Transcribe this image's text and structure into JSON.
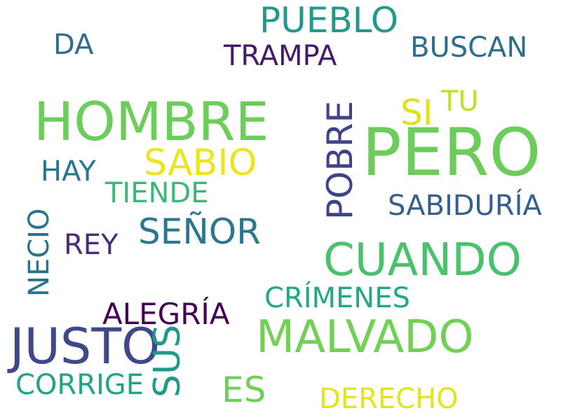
{
  "words": [
    {
      "text": "PUEBLO",
      "color": "#23998b"
    },
    {
      "text": "DA",
      "color": "#2f6c8e"
    },
    {
      "text": "TRAMPA",
      "color": "#43196a"
    },
    {
      "text": "BUSCAN",
      "color": "#2d6e8e"
    },
    {
      "text": "TU",
      "color": "#c2df23"
    },
    {
      "text": "SI",
      "color": "#dde318"
    },
    {
      "text": "HOMBRE",
      "color": "#6ccd5a"
    },
    {
      "text": "PERO",
      "color": "#6ccd5a"
    },
    {
      "text": "SABIO",
      "color": "#ece51b"
    },
    {
      "text": "POBRE",
      "color": "#414387"
    },
    {
      "text": "HAY",
      "color": "#2a768e"
    },
    {
      "text": "TIENDE",
      "color": "#3ab876"
    },
    {
      "text": "SABIDURÍA",
      "color": "#355f8d"
    },
    {
      "text": "NECIO",
      "color": "#2c728e"
    },
    {
      "text": "SEÑOR",
      "color": "#2a788e"
    },
    {
      "text": "REY",
      "color": "#472d7b"
    },
    {
      "text": "CUANDO",
      "color": "#4ac26d"
    },
    {
      "text": "CRÍMENES",
      "color": "#22a884"
    },
    {
      "text": "ALEGRÍA",
      "color": "#440154"
    },
    {
      "text": "JUSTO",
      "color": "#3f4889"
    },
    {
      "text": "MALVADO",
      "color": "#73d056"
    },
    {
      "text": "SUS",
      "color": "#1f9a8a"
    },
    {
      "text": "CORRIGE",
      "color": "#20a386"
    },
    {
      "text": "ES",
      "color": "#70cf57"
    },
    {
      "text": "DERECHO",
      "color": "#e5e419"
    }
  ]
}
